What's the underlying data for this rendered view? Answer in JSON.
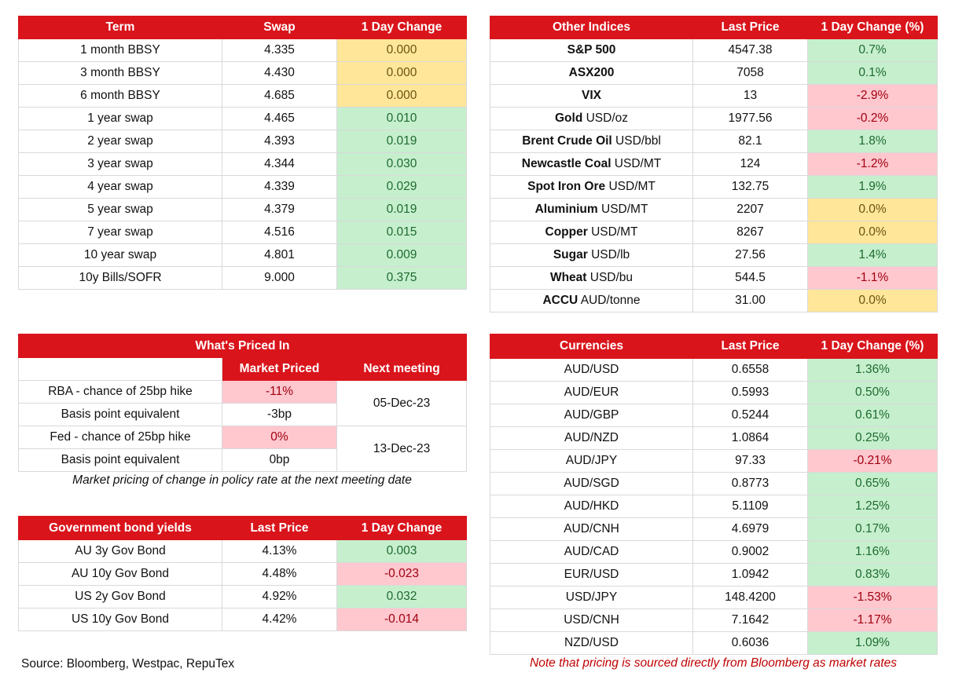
{
  "swaps": {
    "headers": [
      "Term",
      "Swap",
      "1 Day Change"
    ],
    "rows": [
      {
        "term": "1 month BBSY",
        "swap": "4.335",
        "change": "0.000",
        "tone": "y"
      },
      {
        "term": "3 month BBSY",
        "swap": "4.430",
        "change": "0.000",
        "tone": "y"
      },
      {
        "term": "6 month BBSY",
        "swap": "4.685",
        "change": "0.000",
        "tone": "y"
      },
      {
        "term": "1 year swap",
        "swap": "4.465",
        "change": "0.010",
        "tone": "g"
      },
      {
        "term": "2 year swap",
        "swap": "4.393",
        "change": "0.019",
        "tone": "g"
      },
      {
        "term": "3 year swap",
        "swap": "4.344",
        "change": "0.030",
        "tone": "g"
      },
      {
        "term": "4 year swap",
        "swap": "4.339",
        "change": "0.029",
        "tone": "g"
      },
      {
        "term": "5 year swap",
        "swap": "4.379",
        "change": "0.019",
        "tone": "g"
      },
      {
        "term": "7 year swap",
        "swap": "4.516",
        "change": "0.015",
        "tone": "g"
      },
      {
        "term": "10 year swap",
        "swap": "4.801",
        "change": "0.009",
        "tone": "g"
      },
      {
        "term": "10y Bills/SOFR",
        "swap": "9.000",
        "change": "0.375",
        "tone": "g"
      }
    ]
  },
  "indices": {
    "headers": [
      "Other Indices",
      "Last Price",
      "1 Day Change (%)"
    ],
    "rows": [
      {
        "name": "S&P 500",
        "unit": "",
        "price": "4547.38",
        "change": "0.7%",
        "tone": "g"
      },
      {
        "name": "ASX200",
        "unit": "",
        "price": "7058",
        "change": "0.1%",
        "tone": "g"
      },
      {
        "name": "VIX",
        "unit": "",
        "price": "13",
        "change": "-2.9%",
        "tone": "r"
      },
      {
        "name": "Gold",
        "unit": " USD/oz",
        "price": "1977.56",
        "change": "-0.2%",
        "tone": "r"
      },
      {
        "name": "Brent Crude Oil",
        "unit": " USD/bbl",
        "price": "82.1",
        "change": "1.8%",
        "tone": "g"
      },
      {
        "name": "Newcastle Coal",
        "unit": " USD/MT",
        "price": "124",
        "change": "-1.2%",
        "tone": "r"
      },
      {
        "name": "Spot Iron Ore",
        "unit": " USD/MT",
        "price": "132.75",
        "change": "1.9%",
        "tone": "g"
      },
      {
        "name": "Aluminium",
        "unit": " USD/MT",
        "price": "2207",
        "change": "0.0%",
        "tone": "y"
      },
      {
        "name": "Copper",
        "unit": " USD/MT",
        "price": "8267",
        "change": "0.0%",
        "tone": "y"
      },
      {
        "name": "Sugar",
        "unit": " USD/lb",
        "price": "27.56",
        "change": "1.4%",
        "tone": "g"
      },
      {
        "name": "Wheat",
        "unit": " USD/bu",
        "price": "544.5",
        "change": "-1.1%",
        "tone": "r"
      },
      {
        "name": "ACCU",
        "unit": " AUD/tonne",
        "price": "31.00",
        "change": "0.0%",
        "tone": "y"
      }
    ]
  },
  "priced_in": {
    "title": "What's Priced In",
    "col_market": "Market Priced",
    "col_next": "Next meeting",
    "rba_label": "RBA - chance of 25bp hike",
    "rba_value": "-11%",
    "rba_bp_label": "Basis point equivalent",
    "rba_bp_value": "-3bp",
    "rba_date": "05-Dec-23",
    "fed_label": "Fed - chance of 25bp hike",
    "fed_value": "0%",
    "fed_bp_label": "Basis point equivalent",
    "fed_bp_value": "0bp",
    "fed_date": "13-Dec-23",
    "caption": "Market pricing of change in policy rate at the next meeting date"
  },
  "bonds": {
    "headers": [
      "Government bond yields",
      "Last Price",
      "1 Day Change"
    ],
    "rows": [
      {
        "name": "AU 3y Gov Bond",
        "price": "4.13%",
        "change": "0.003",
        "tone": "g"
      },
      {
        "name": "AU 10y Gov Bond",
        "price": "4.48%",
        "change": "-0.023",
        "tone": "r"
      },
      {
        "name": "US 2y Gov Bond",
        "price": "4.92%",
        "change": "0.032",
        "tone": "g"
      },
      {
        "name": "US 10y Gov Bond",
        "price": "4.42%",
        "change": "-0.014",
        "tone": "r"
      }
    ]
  },
  "currencies": {
    "headers": [
      "Currencies",
      "Last Price",
      "1 Day Change (%)"
    ],
    "rows": [
      {
        "pair": "AUD/USD",
        "price": "0.6558",
        "change": "1.36%",
        "tone": "g"
      },
      {
        "pair": "AUD/EUR",
        "price": "0.5993",
        "change": "0.50%",
        "tone": "g"
      },
      {
        "pair": "AUD/GBP",
        "price": "0.5244",
        "change": "0.61%",
        "tone": "g"
      },
      {
        "pair": "AUD/NZD",
        "price": "1.0864",
        "change": "0.25%",
        "tone": "g"
      },
      {
        "pair": "AUD/JPY",
        "price": "97.33",
        "change": "-0.21%",
        "tone": "r"
      },
      {
        "pair": "AUD/SGD",
        "price": "0.8773",
        "change": "0.65%",
        "tone": "g"
      },
      {
        "pair": "AUD/HKD",
        "price": "5.1109",
        "change": "1.25%",
        "tone": "g"
      },
      {
        "pair": "AUD/CNH",
        "price": "4.6979",
        "change": "0.17%",
        "tone": "g"
      },
      {
        "pair": "AUD/CAD",
        "price": "0.9002",
        "change": "1.16%",
        "tone": "g"
      },
      {
        "pair": "EUR/USD",
        "price": "1.0942",
        "change": "0.83%",
        "tone": "g"
      },
      {
        "pair": "USD/JPY",
        "price": "148.4200",
        "change": "-1.53%",
        "tone": "r"
      },
      {
        "pair": "USD/CNH",
        "price": "7.1642",
        "change": "-1.17%",
        "tone": "r"
      },
      {
        "pair": "NZD/USD",
        "price": "0.6036",
        "change": "1.09%",
        "tone": "g"
      }
    ]
  },
  "footer": {
    "source": "Source: Bloomberg, Westpac, RepuTex",
    "note": "Note that pricing is sourced directly from Bloomberg as market rates"
  },
  "colors": {
    "header_red": "#d9141b",
    "positive_fill": "#c6efce",
    "negative_fill": "#ffc7ce",
    "neutral_fill": "#ffe699",
    "note_red": "#c00000"
  }
}
